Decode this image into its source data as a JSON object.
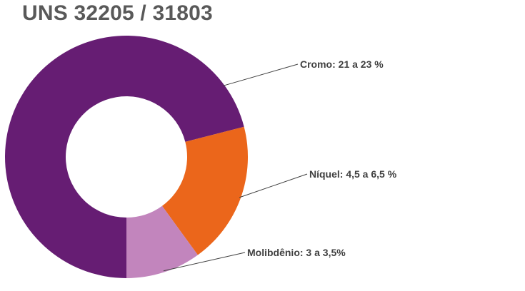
{
  "title": "UNS 32205 / 31803",
  "chart_data": {
    "type": "pie",
    "style": "donut",
    "title": "UNS 32205 / 31803",
    "slices": [
      {
        "label": "Cromo: 21 a 23 %",
        "value": 71,
        "color": "#661D73"
      },
      {
        "label": "Níquel: 4,5 a 6,5 %",
        "value": 19,
        "color": "#EB661B"
      },
      {
        "label": "Molibdênio: 3 a 3,5%",
        "value": 10,
        "color": "#C285BD"
      }
    ],
    "legend": "none"
  }
}
